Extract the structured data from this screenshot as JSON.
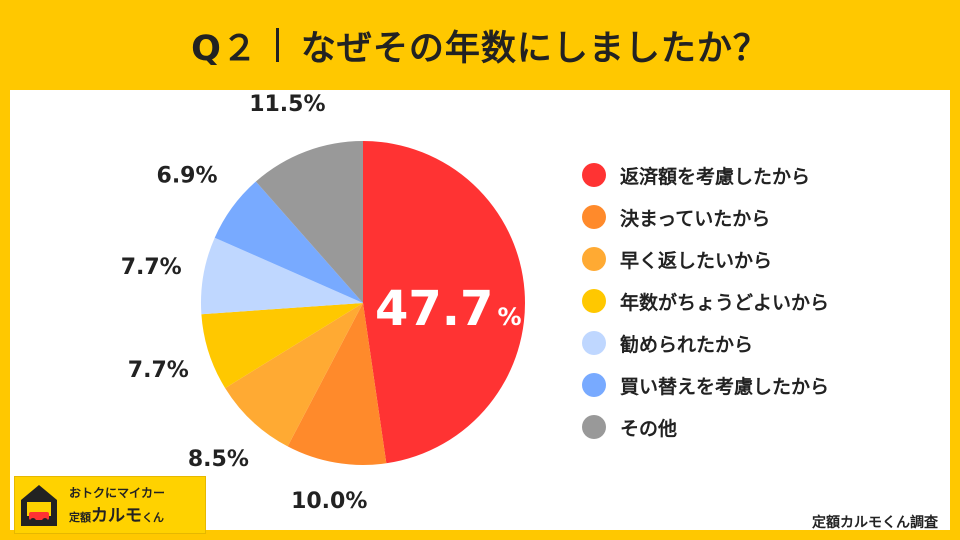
{
  "header": {
    "question_number": "Q２",
    "question": "なぜその年数にしましたか？"
  },
  "chart_data": {
    "type": "pie",
    "start": "top",
    "direction": "clockwise",
    "unit": "%",
    "slices": [
      {
        "label": "返済額を考慮したから",
        "value": 47.7,
        "display": "47.7",
        "color": "#FF3333"
      },
      {
        "label": "決まっていたから",
        "value": 10.0,
        "display": "10.0%",
        "color": "#FF8A2B"
      },
      {
        "label": "早く返したいから",
        "value": 8.5,
        "display": "8.5%",
        "color": "#FFAA33"
      },
      {
        "label": "年数がちょうどよいから",
        "value": 7.7,
        "display": "7.7%",
        "color": "#FFC800"
      },
      {
        "label": "勧められたから",
        "value": 7.7,
        "display": "7.7%",
        "color": "#BFD7FF"
      },
      {
        "label": "買い替えを考慮したから",
        "value": 6.9,
        "display": "6.9%",
        "color": "#78AAFF"
      },
      {
        "label": "その他",
        "value": 11.5,
        "display": "11.5%",
        "color": "#999999"
      }
    ],
    "legend_position": "right"
  },
  "footer": {
    "source": "定額カルモくん調査",
    "logo_tagline": "おトクにマイカー",
    "logo_prefix": "定額",
    "logo_name": "カルモ",
    "logo_suffix": "くん"
  }
}
